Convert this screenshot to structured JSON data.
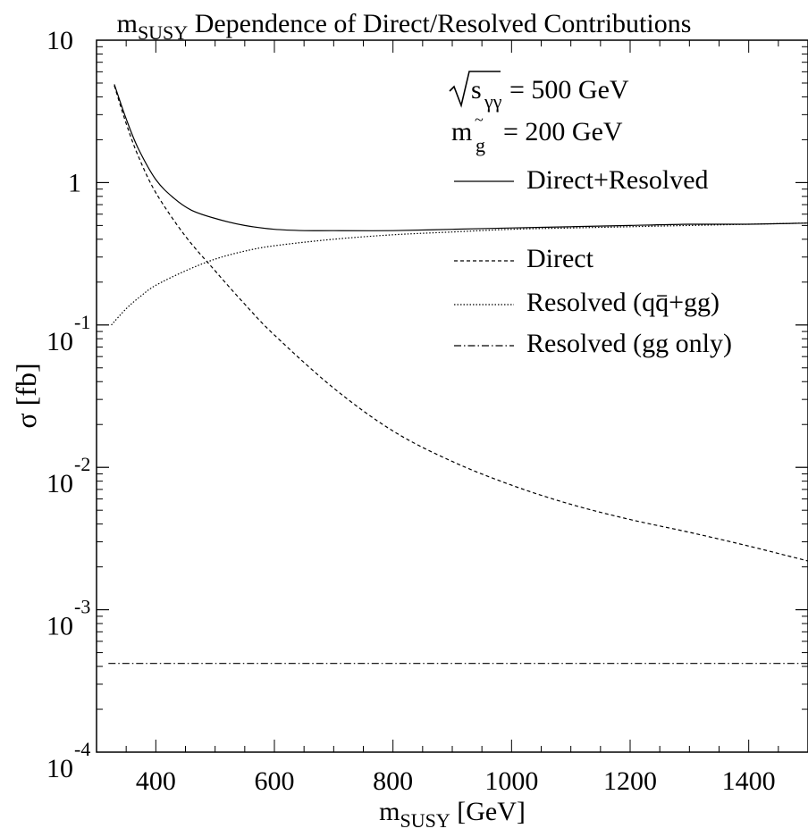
{
  "chart_data": {
    "type": "line",
    "title": {
      "prefix": "m",
      "sub": "SUSY",
      "rest": " Dependence of Direct/Resolved Contributions"
    },
    "xlabel": {
      "prefix": "m",
      "sub": "SUSY",
      "rest": " [GeV]"
    },
    "ylabel": "σ [fb]",
    "x_scale": "linear",
    "y_scale": "log",
    "xlim": [
      300,
      1500
    ],
    "ylim": [
      0.0001,
      10
    ],
    "x_ticks": [
      "400",
      "600",
      "800",
      "1000",
      "1200",
      "1400"
    ],
    "y_ticks": [
      {
        "base": "10",
        "exp": ""
      },
      {
        "base": "1",
        "exp": ""
      },
      {
        "base": "10",
        "exp": "-1"
      },
      {
        "base": "10",
        "exp": "-2"
      },
      {
        "base": "10",
        "exp": "-3"
      },
      {
        "base": "10",
        "exp": "-4"
      }
    ],
    "annotations": {
      "sqrt_s": {
        "sub": "γγ",
        "rest": " = 500 GeV"
      },
      "m_gluino": {
        "prefix": "m",
        "sub": "g",
        "rest": "  = 200 GeV"
      }
    },
    "legend_placement": "top-right",
    "series": [
      {
        "name": "Direct+Resolved",
        "style": "solid",
        "x": [
          330,
          350,
          370,
          400,
          430,
          460,
          500,
          550,
          600,
          650,
          700,
          800,
          900,
          1000,
          1100,
          1200,
          1300,
          1400,
          1500
        ],
        "y": [
          4.9,
          2.8,
          1.75,
          1.05,
          0.78,
          0.64,
          0.56,
          0.5,
          0.47,
          0.46,
          0.46,
          0.46,
          0.47,
          0.48,
          0.49,
          0.5,
          0.51,
          0.51,
          0.52
        ]
      },
      {
        "name": "Direct",
        "style": "dashed",
        "x": [
          330,
          350,
          370,
          400,
          450,
          500,
          550,
          600,
          700,
          800,
          900,
          1000,
          1100,
          1200,
          1300,
          1400,
          1500
        ],
        "y": [
          4.8,
          2.6,
          1.55,
          0.85,
          0.42,
          0.24,
          0.14,
          0.085,
          0.036,
          0.018,
          0.011,
          0.0075,
          0.0055,
          0.0043,
          0.0035,
          0.0028,
          0.0022
        ]
      },
      {
        "name": "Resolved (qq̄+gg)",
        "legend_parts": [
          "Resolved (q",
          "q",
          "+gg)"
        ],
        "style": "dotted",
        "x": [
          325,
          350,
          375,
          400,
          450,
          500,
          550,
          600,
          700,
          800,
          900,
          1000,
          1100,
          1200,
          1300,
          1400,
          1500
        ],
        "y": [
          0.1,
          0.13,
          0.16,
          0.19,
          0.24,
          0.29,
          0.33,
          0.36,
          0.4,
          0.43,
          0.45,
          0.47,
          0.48,
          0.49,
          0.5,
          0.51,
          0.52
        ]
      },
      {
        "name": "Resolved (gg only)",
        "style": "dashdot",
        "x": [
          320,
          1500
        ],
        "y": [
          0.00042,
          0.00042
        ]
      }
    ]
  }
}
